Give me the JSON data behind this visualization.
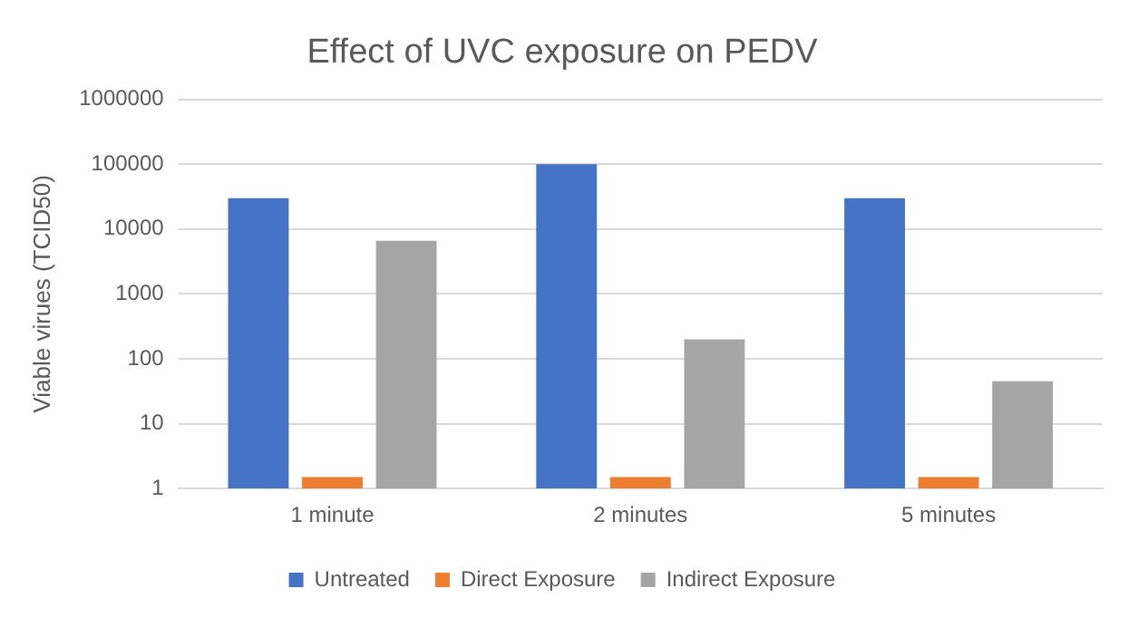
{
  "chart_data": {
    "type": "bar",
    "title": "Effect of UVC exposure on PEDV",
    "ylabel": "Viable virues (TCID50)",
    "categories": [
      "1 minute",
      "2 minutes",
      "5 minutes"
    ],
    "series": [
      {
        "name": "Untreated",
        "color": "#4472c4",
        "values": [
          30000,
          100000,
          30000
        ]
      },
      {
        "name": "Direct Exposure",
        "color": "#ed7d31",
        "values": [
          1.5,
          1.5,
          1.5
        ]
      },
      {
        "name": "Indirect Exposure",
        "color": "#a5a5a5",
        "values": [
          6600,
          200,
          45
        ]
      }
    ],
    "log": "y",
    "ylim": [
      1,
      1000000
    ],
    "yticks": [
      1,
      10,
      100,
      1000,
      10000,
      100000,
      1000000
    ],
    "grid": "y",
    "legend": "bottom"
  }
}
